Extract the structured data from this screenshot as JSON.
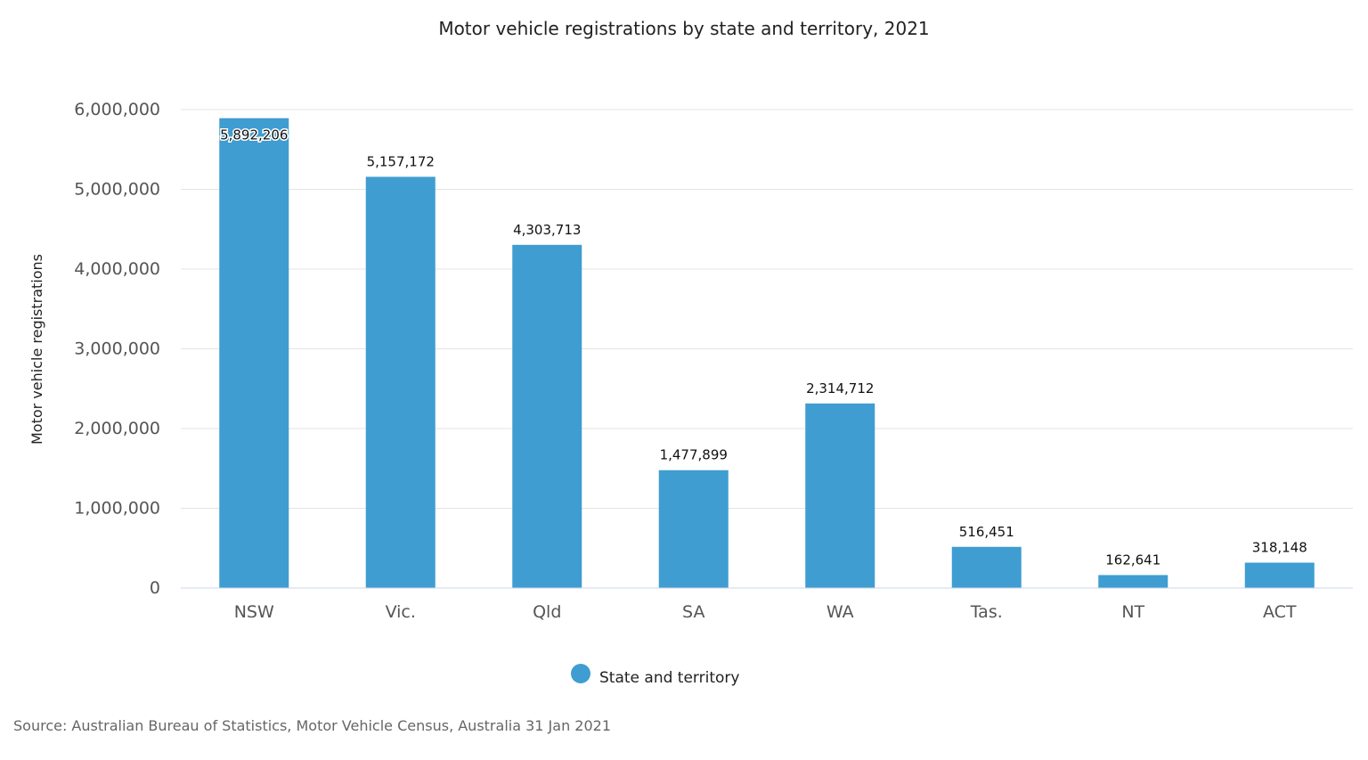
{
  "chart_data": {
    "type": "bar",
    "title": "Motor vehicle registrations by state and territory, 2021",
    "xlabel": "",
    "ylabel": "Motor vehicle registrations",
    "categories": [
      "NSW",
      "Vic.",
      "Qld",
      "SA",
      "WA",
      "Tas.",
      "NT",
      "ACT"
    ],
    "series": [
      {
        "name": "State and territory",
        "values": [
          5892206,
          5157172,
          4303713,
          1477899,
          2314712,
          516451,
          162641,
          318148
        ],
        "labels": [
          "5,892,206",
          "5,157,172",
          "4,303,713",
          "1,477,899",
          "2,314,712",
          "516,451",
          "162,641",
          "318,148"
        ],
        "color": "#3f9dd1"
      }
    ],
    "ylim": [
      0,
      6000000
    ],
    "y_ticks": [
      0,
      1000000,
      2000000,
      3000000,
      4000000,
      5000000,
      6000000
    ],
    "y_tick_labels": [
      "0",
      "1,000,000",
      "2,000,000",
      "3,000,000",
      "4,000,000",
      "5,000,000",
      "6,000,000"
    ],
    "grid": true,
    "legend_position": "bottom-center"
  },
  "source": "Source: Australian Bureau of Statistics, Motor Vehicle Census, Australia 31 Jan 2021"
}
